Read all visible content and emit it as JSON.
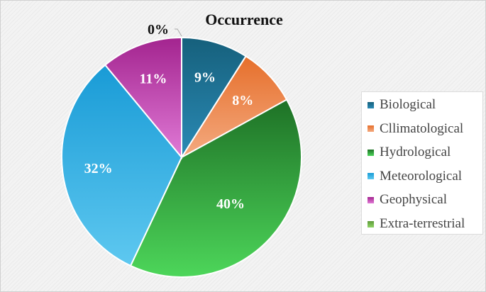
{
  "chart_data": {
    "type": "pie",
    "title": "Occurrence",
    "categories": [
      "Biological",
      "Cllimatological",
      "Hydrological",
      "Meteorological",
      "Geophysical",
      "Extra-terrestrial"
    ],
    "values": [
      9,
      8,
      40,
      32,
      11,
      0
    ],
    "data_labels": [
      "9%",
      "8%",
      "40%",
      "32%",
      "11%",
      "0%"
    ],
    "colors": [
      [
        "#16607c",
        "#2a8ab5"
      ],
      [
        "#e66f2b",
        "#f4aa80"
      ],
      [
        "#1e7126",
        "#4dd65a"
      ],
      [
        "#199bd6",
        "#5ec8f0"
      ],
      [
        "#a3248f",
        "#e07ad6"
      ],
      [
        "#5e9a3a",
        "#8fd466"
      ]
    ],
    "legend_position": "right"
  }
}
